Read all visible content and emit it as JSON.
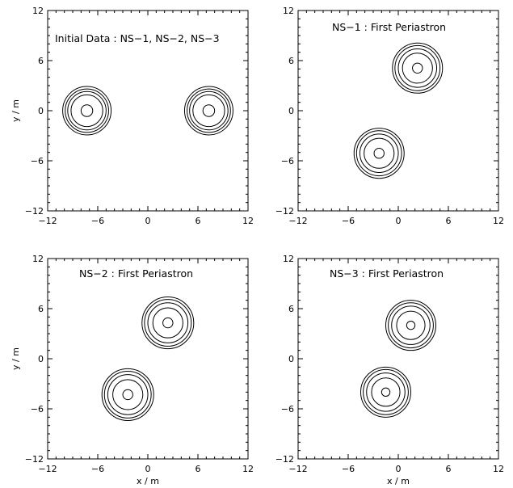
{
  "chart_data": [
    {
      "type": "contour",
      "title": "Initial Data : NS−1, NS−2, NS−3",
      "xlabel": "",
      "ylabel": "y / m",
      "xlim": [
        -12,
        12
      ],
      "ylim": [
        -12,
        12
      ],
      "xticks": [
        "−12",
        "−6",
        "0",
        "6",
        "12"
      ],
      "yticks": [
        "−12",
        "−6",
        "0",
        "6",
        "12"
      ],
      "grid": false,
      "stars": [
        {
          "center": [
            -7.3,
            0
          ],
          "radii": [
            0.7,
            1.9,
            2.3,
            2.6,
            2.9
          ]
        },
        {
          "center": [
            7.3,
            0
          ],
          "radii": [
            0.7,
            1.9,
            2.3,
            2.6,
            2.9
          ]
        }
      ]
    },
    {
      "type": "contour",
      "title": "NS−1 : First Periastron",
      "xlabel": "",
      "ylabel": "",
      "xlim": [
        -12,
        12
      ],
      "ylim": [
        -12,
        12
      ],
      "xticks": [
        "−12",
        "−6",
        "0",
        "6",
        "12"
      ],
      "yticks": [
        "−12",
        "−6",
        "0",
        "6",
        "12"
      ],
      "grid": false,
      "stars": [
        {
          "center": [
            2.3,
            5.1
          ],
          "radii": [
            0.6,
            1.8,
            2.3,
            2.7,
            3.0
          ]
        },
        {
          "center": [
            -2.3,
            -5.1
          ],
          "radii": [
            0.6,
            1.8,
            2.3,
            2.7,
            3.0
          ]
        }
      ]
    },
    {
      "type": "contour",
      "title": "NS−2 : First Periastron",
      "xlabel": "x / m",
      "ylabel": "y / m",
      "xlim": [
        -12,
        12
      ],
      "ylim": [
        -12,
        12
      ],
      "xticks": [
        "−12",
        "−6",
        "0",
        "6",
        "12"
      ],
      "yticks": [
        "−12",
        "−6",
        "0",
        "6",
        "12"
      ],
      "grid": false,
      "stars": [
        {
          "center": [
            2.4,
            4.3
          ],
          "radii": [
            0.6,
            1.8,
            2.4,
            2.8,
            3.1
          ]
        },
        {
          "center": [
            -2.4,
            -4.3
          ],
          "radii": [
            0.6,
            1.8,
            2.4,
            2.8,
            3.1
          ]
        }
      ]
    },
    {
      "type": "contour",
      "title": "NS−3 : First Periastron",
      "xlabel": "x / m",
      "ylabel": "",
      "xlim": [
        -12,
        12
      ],
      "ylim": [
        -12,
        12
      ],
      "xticks": [
        "−12",
        "−6",
        "0",
        "6",
        "12"
      ],
      "yticks": [
        "−12",
        "−6",
        "0",
        "6",
        "12"
      ],
      "grid": false,
      "stars": [
        {
          "center": [
            1.5,
            4.0
          ],
          "radii": [
            0.5,
            1.7,
            2.3,
            2.7,
            3.0
          ]
        },
        {
          "center": [
            -1.5,
            -4.0
          ],
          "radii": [
            0.5,
            1.7,
            2.3,
            2.7,
            3.0
          ]
        }
      ]
    }
  ]
}
